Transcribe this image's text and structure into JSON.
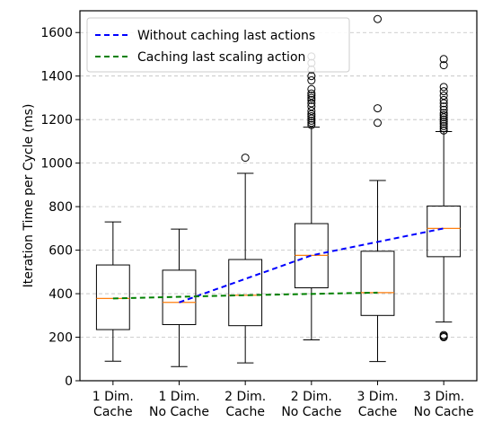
{
  "chart_data": {
    "type": "boxplot",
    "xlabel": "",
    "ylabel": "Iteration Time per Cycle (ms)",
    "ylim": [
      0,
      1700
    ],
    "yticks": [
      0,
      200,
      400,
      600,
      800,
      1000,
      1200,
      1400,
      1600
    ],
    "grid": "horizontal-dashed",
    "legend_position": "top-left",
    "categories": [
      [
        "1 Dim.",
        "Cache"
      ],
      [
        "1 Dim.",
        "No Cache"
      ],
      [
        "2 Dim.",
        "Cache"
      ],
      [
        "2 Dim.",
        "No Cache"
      ],
      [
        "3 Dim.",
        "Cache"
      ],
      [
        "3 Dim.",
        "No Cache"
      ]
    ],
    "boxes": [
      {
        "whislo": 90,
        "q1": 235,
        "med": 378,
        "q3": 532,
        "whishi": 730,
        "fliers": []
      },
      {
        "whislo": 65,
        "q1": 258,
        "med": 360,
        "q3": 508,
        "whishi": 697,
        "fliers": []
      },
      {
        "whislo": 82,
        "q1": 253,
        "med": 393,
        "q3": 557,
        "whishi": 953,
        "fliers": [
          1025
        ]
      },
      {
        "whislo": 188,
        "q1": 427,
        "med": 576,
        "q3": 722,
        "whishi": 1165,
        "fliers": [
          1175,
          1185,
          1195,
          1205,
          1215,
          1225,
          1240,
          1260,
          1275,
          1290,
          1300,
          1310,
          1320,
          1340,
          1380,
          1400,
          1430,
          1460,
          1490
        ]
      },
      {
        "whislo": 88,
        "q1": 300,
        "med": 405,
        "q3": 595,
        "whishi": 920,
        "fliers": [
          1185,
          1252,
          1662
        ]
      },
      {
        "whislo": 270,
        "q1": 570,
        "med": 700,
        "q3": 803,
        "whishi": 1145,
        "fliers": [
          200,
          205,
          210,
          1150,
          1160,
          1170,
          1180,
          1190,
          1200,
          1210,
          1220,
          1230,
          1245,
          1260,
          1275,
          1290,
          1310,
          1330,
          1350,
          1450,
          1478
        ]
      }
    ],
    "series": [
      {
        "name": "Without caching last actions",
        "color": "#0000ff",
        "style": "dashed",
        "points": [
          [
            2,
            360
          ],
          [
            4,
            576
          ],
          [
            6,
            700
          ]
        ]
      },
      {
        "name": "Caching last scaling action",
        "color": "#008000",
        "style": "dashed",
        "points": [
          [
            1,
            378
          ],
          [
            3,
            393
          ],
          [
            5,
            405
          ]
        ]
      }
    ],
    "median_color": "#ff7f0e"
  }
}
